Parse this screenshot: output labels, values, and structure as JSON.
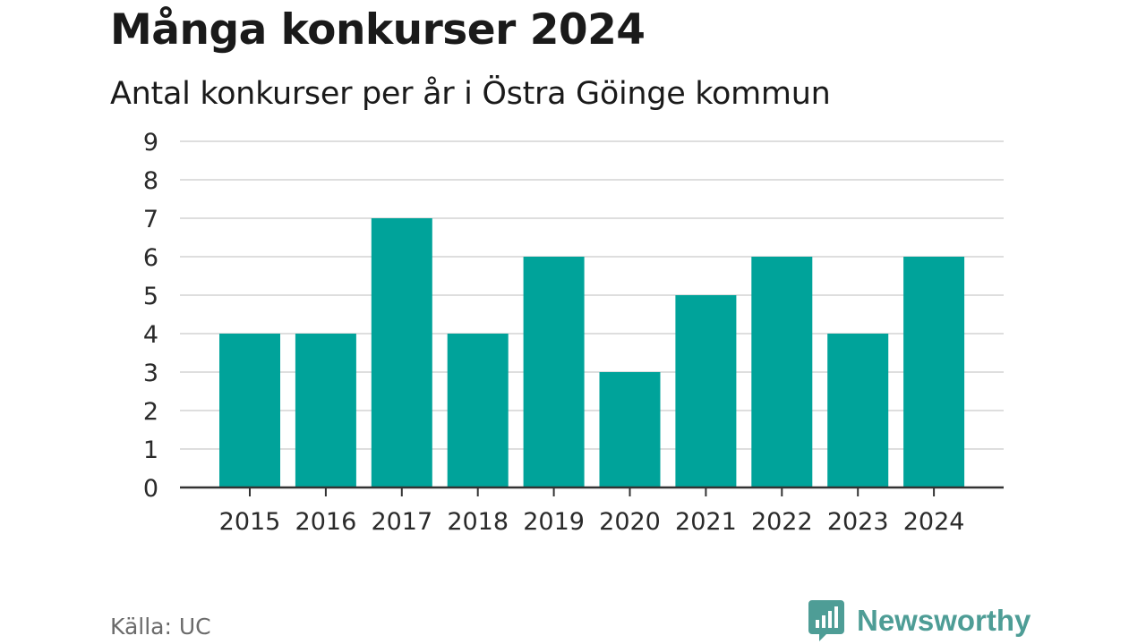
{
  "header": {
    "title": "Många konkurser 2024",
    "subtitle": "Antal konkurser per år i Östra Göinge kommun"
  },
  "chart_data": {
    "type": "bar",
    "categories": [
      "2015",
      "2016",
      "2017",
      "2018",
      "2019",
      "2020",
      "2021",
      "2022",
      "2023",
      "2024"
    ],
    "values": [
      4,
      4,
      7,
      4,
      6,
      3,
      5,
      6,
      4,
      6
    ],
    "title": "Många konkurser 2024",
    "subtitle": "Antal konkurser per år i Östra Göinge kommun",
    "xlabel": "",
    "ylabel": "",
    "ylim": [
      0,
      9
    ],
    "yticks": [
      "0",
      "1",
      "2",
      "3",
      "4",
      "5",
      "6",
      "7",
      "8",
      "9"
    ],
    "grid": true,
    "legend": "none",
    "bar_color": "#00a39a"
  },
  "footer": {
    "source": "Källa: UC",
    "brand": "Newsworthy",
    "logo_icon": "newsworthy-logo-icon"
  },
  "colors": {
    "bar": "#00a39a",
    "grid": "#dedede",
    "axis": "#333333",
    "brand": "#4e9d96",
    "source_text": "#6b6b6b"
  }
}
